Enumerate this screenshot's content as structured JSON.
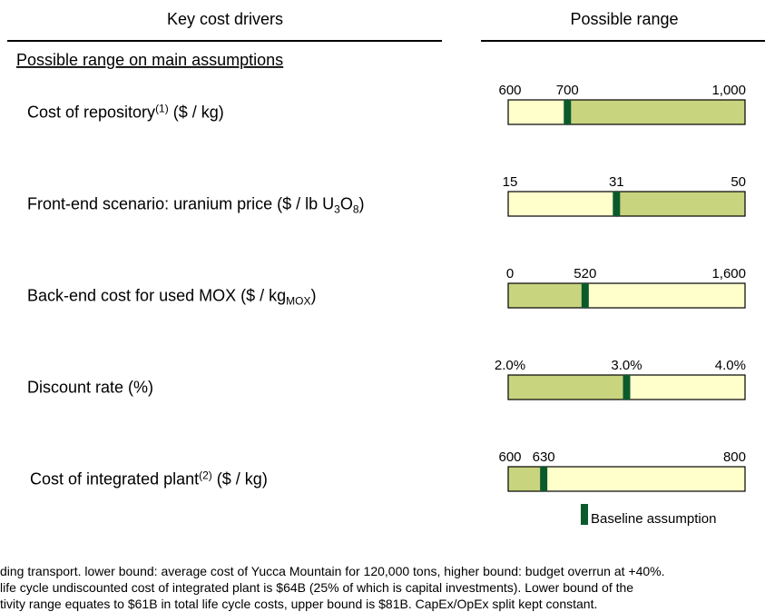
{
  "chart_data": {
    "type": "range",
    "headers": [
      "Key cost drivers",
      "Possible range"
    ],
    "section": "Possible range on main assumptions",
    "baseline_color": "#0b5a2c",
    "rows": [
      {
        "label": [
          {
            "text": "Cost of repository"
          },
          {
            "text": "(1)",
            "sup": true
          },
          {
            "text": " ($ / kg)"
          }
        ],
        "values": [
          600,
          700,
          1000
        ],
        "value_labels": [
          "600",
          "700",
          "1,000"
        ],
        "colors": [
          "#ffffcc",
          "#c8d47e"
        ]
      },
      {
        "label": [
          {
            "text": "Front-end scenario: uranium price ($ / lb U"
          },
          {
            "text": "3",
            "sub": true
          },
          {
            "text": "O"
          },
          {
            "text": "8",
            "sub": true
          },
          {
            "text": ")"
          }
        ],
        "values": [
          15,
          31,
          50
        ],
        "value_labels": [
          "15",
          "31",
          "50"
        ],
        "colors": [
          "#ffffcc",
          "#c8d47e"
        ]
      },
      {
        "label": [
          {
            "text": "Back-end cost for used MOX ($ / kg"
          },
          {
            "text": "MOX",
            "sub": true
          },
          {
            "text": ")"
          }
        ],
        "values": [
          0,
          520,
          1600
        ],
        "value_labels": [
          "0",
          "520",
          "1,600"
        ],
        "colors": [
          "#c8d47e",
          "#ffffcc"
        ]
      },
      {
        "label": [
          {
            "text": "Discount rate (%)"
          }
        ],
        "values": [
          2.0,
          3.0,
          4.0
        ],
        "value_labels": [
          "2.0%",
          "3.0%",
          "4.0%"
        ],
        "colors": [
          "#c8d47e",
          "#ffffcc"
        ]
      },
      {
        "label": [
          {
            "text": "Cost of integrated plant"
          },
          {
            "text": "(2)",
            "sup": true
          },
          {
            "text": " ($ / kg)"
          }
        ],
        "values": [
          600,
          630,
          800
        ],
        "value_labels": [
          "600",
          "630",
          "800"
        ],
        "colors": [
          "#c8d47e",
          "#ffffcc"
        ]
      }
    ],
    "legend": "Baseline assumption",
    "footnotes": [
      "ding transport. lower bound: average cost of Yucca Mountain for 120,000 tons, higher bound: budget overrun at +40%.",
      "life cycle undiscounted cost of integrated plant is $64B (25% of which is capital investments). Lower bound of the",
      "tivity range equates to $61B in total life cycle costs, upper bound is $81B. CapEx/OpEx split kept constant."
    ]
  }
}
